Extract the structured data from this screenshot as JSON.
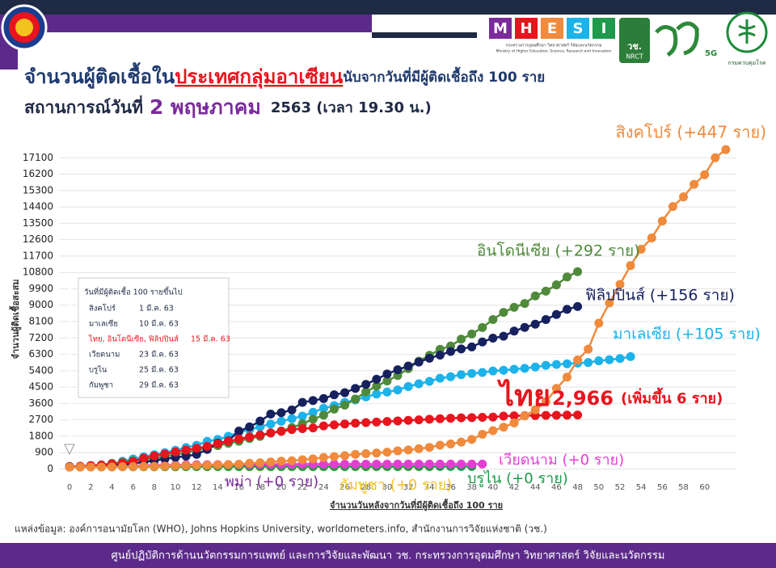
{
  "header": {
    "mhesi_letters": [
      "M",
      "H",
      "E",
      "S",
      "I"
    ],
    "mhesi_th": "กระทรวงการอุดมศึกษา วิทยาศาสตร์ วิจัยและนวัตกรรม",
    "mhesi_en": "Ministry of Higher Education, Science, Research and Innovation",
    "nrct": "วช.",
    "nrct_en": "NRCT",
    "fiveg": "5G",
    "ddc": "กรมควบคุมโรค"
  },
  "chart_data": {
    "type": "line",
    "title": [
      "จำนวนผู้ติดเชื้อใน",
      "ประเทศกลุ่มอาเซียน",
      "นับจากวันที่มีผู้ติดเชื้อถึง 100 ราย"
    ],
    "subtitle": [
      "สถานการณ์วันที่",
      "2 พฤษภาคม",
      "2563  (เวลา 19.30 น.)"
    ],
    "x_label": "จำนวนวันหลังจากวันที่มีผู้ติดเชื้อถึง 100 ราย",
    "y_label": "จำนวนผู้ติดเชื้อสะสม",
    "x": [
      0,
      1,
      2,
      3,
      4,
      5,
      6,
      7,
      8,
      9,
      10,
      11,
      12,
      13,
      14,
      15,
      16,
      17,
      18,
      19,
      20,
      21,
      22,
      23,
      24,
      25,
      26,
      27,
      28,
      29,
      30,
      31,
      32,
      33,
      34,
      35,
      36,
      37,
      38,
      39,
      40,
      41,
      42,
      43,
      44,
      45,
      46,
      47,
      48,
      49,
      50,
      51,
      52,
      53,
      54,
      55,
      56,
      57,
      58,
      59,
      60,
      61,
      62
    ],
    "xlim": [
      -1,
      63
    ],
    "xticks": [
      0,
      2,
      4,
      6,
      8,
      10,
      12,
      14,
      16,
      18,
      20,
      22,
      24,
      26,
      28,
      30,
      32,
      34,
      36,
      38,
      40,
      42,
      44,
      46,
      48,
      50,
      52,
      54,
      56,
      58,
      60
    ],
    "ylim": [
      -600,
      18000
    ],
    "yticks": [
      0,
      900,
      1800,
      2700,
      3600,
      4500,
      5400,
      6300,
      7200,
      8100,
      9000,
      9900,
      10800,
      11700,
      12600,
      13500,
      14400,
      15300,
      16200,
      17100
    ],
    "grid": true,
    "series": [
      {
        "name": "สิงคโปร์ (+447 ราย)",
        "color": "#f08a3c",
        "values": [
          106,
          108,
          110,
          110,
          117,
          130,
          138,
          150,
          150,
          160,
          178,
          187,
          200,
          212,
          226,
          243,
          266,
          313,
          345,
          385,
          432,
          455,
          509,
          558,
          631,
          683,
          732,
          802,
          844,
          879,
          926,
          1000,
          1049,
          1114,
          1189,
          1309,
          1375,
          1481,
          1623,
          1910,
          2108,
          2299,
          2532,
          2918,
          3252,
          3699,
          4427,
          5050,
          5992,
          6588,
          8014,
          9125,
          10141,
          11178,
          12075,
          12693,
          13624,
          14423,
          14951,
          15641,
          16169,
          17101,
          17548
        ]
      },
      {
        "name": "อินโดนีเซีย (+292 ราย)",
        "color": "#4f8a3b",
        "values": [
          117,
          134,
          172,
          227,
          309,
          369,
          450,
          514,
          579,
          686,
          790,
          893,
          1046,
          1155,
          1285,
          1414,
          1528,
          1677,
          1790,
          1986,
          2092,
          2273,
          2491,
          2738,
          2956,
          3293,
          3512,
          3842,
          4241,
          4557,
          4839,
          5136,
          5516,
          5923,
          6248,
          6575,
          6760,
          7135,
          7418,
          7775,
          8211,
          8607,
          8882,
          9096,
          9511,
          9771,
          10118,
          10551,
          10843,
          null,
          null,
          null,
          null,
          null,
          null,
          null,
          null,
          null,
          null,
          null,
          null,
          null,
          null
        ]
      },
      {
        "name": "ฟิลิปปินส์ (+156 ราย)",
        "color": "#16215e",
        "values": [
          140,
          142,
          187,
          202,
          217,
          230,
          307,
          380,
          462,
          552,
          636,
          707,
          803,
          1075,
          1418,
          1546,
          2084,
          2311,
          2633,
          3018,
          3094,
          3246,
          3660,
          3764,
          3870,
          4076,
          4195,
          4428,
          4648,
          4932,
          5223,
          5453,
          5660,
          5878,
          6087,
          6259,
          6459,
          6599,
          6710,
          6981,
          7192,
          7294,
          7579,
          7777,
          7958,
          8212,
          8488,
          8772,
          8928,
          null,
          null,
          null,
          null,
          null,
          null,
          null,
          null,
          null,
          null,
          null,
          null,
          null,
          null
        ]
      },
      {
        "name": "มาเลเซีย (+105 ราย)",
        "color": "#1cb2ea",
        "values": [
          129,
          149,
          149,
          197,
          238,
          428,
          553,
          673,
          790,
          900,
          1030,
          1183,
          1306,
          1518,
          1624,
          1796,
          2031,
          2161,
          2320,
          2470,
          2626,
          2766,
          2908,
          3116,
          3333,
          3483,
          3662,
          3793,
          3963,
          4119,
          4228,
          4346,
          4530,
          4683,
          4817,
          4987,
          5072,
          5182,
          5251,
          5305,
          5389,
          5425,
          5482,
          5532,
          5603,
          5691,
          5742,
          5780,
          5820,
          5851,
          5945,
          6002,
          6071,
          6176,
          null,
          null,
          null,
          null,
          null,
          null,
          null,
          null,
          null
        ]
      },
      {
        "name": "ไทย",
        "color": "#e8141e",
        "annotation": "(เพิ่มขึ้น 6 ราย)",
        "values": [
          114,
          147,
          177,
          212,
          272,
          322,
          411,
          599,
          721,
          827,
          934,
          1045,
          1136,
          1245,
          1388,
          1524,
          1651,
          1771,
          1875,
          1978,
          2067,
          2169,
          2220,
          2258,
          2369,
          2423,
          2473,
          2518,
          2551,
          2579,
          2613,
          2643,
          2672,
          2700,
          2733,
          2765,
          2792,
          2811,
          2826,
          2839,
          2854,
          2907,
          2922,
          2931,
          2938,
          2947,
          2954,
          2960,
          2966,
          null,
          null,
          null,
          null,
          null,
          null,
          null,
          null,
          null,
          null,
          null,
          null,
          null,
          null
        ],
        "value_labels": [
          null,
          null,
          null,
          null,
          null,
          null,
          null,
          null,
          null,
          null,
          null,
          null,
          null,
          null,
          null,
          null,
          null,
          null,
          null,
          null,
          null,
          null,
          null,
          null,
          null,
          null,
          null,
          null,
          null,
          null,
          null,
          null,
          null,
          null,
          null,
          null,
          null,
          null,
          null,
          null,
          null,
          null,
          null,
          null,
          null,
          null,
          null,
          null,
          "2,966",
          null,
          null,
          null,
          null,
          null,
          null,
          null,
          null,
          null,
          null,
          null,
          null,
          null,
          null
        ]
      },
      {
        "name": "เวียดนาม (+0 ราย)",
        "color": "#e23fd2",
        "values": [
          113,
          134,
          141,
          148,
          153,
          163,
          174,
          188,
          203,
          212,
          218,
          233,
          237,
          240,
          241,
          245,
          249,
          251,
          255,
          257,
          258,
          262,
          265,
          266,
          267,
          268,
          268,
          268,
          268,
          268,
          268,
          270,
          270,
          270,
          270,
          270,
          270,
          270,
          271,
          271,
          null,
          null,
          null,
          null,
          null,
          null,
          null,
          null,
          null,
          null,
          null,
          null,
          null,
          null,
          null,
          null,
          null,
          null,
          null,
          null,
          null,
          null,
          null
        ]
      },
      {
        "name": "กัมพูชา (+0 ราย)",
        "color": "#f2c21f",
        "values": [
          103,
          107,
          109,
          109,
          110,
          114,
          114,
          115,
          117,
          119,
          119,
          120,
          122,
          122,
          122,
          122,
          122,
          122,
          122,
          122,
          122,
          122,
          122,
          122,
          122,
          122,
          122,
          122,
          122,
          122,
          122,
          122,
          122,
          122,
          122,
          null,
          null,
          null,
          null,
          null,
          null,
          null,
          null,
          null,
          null,
          null,
          null,
          null,
          null,
          null,
          null,
          null,
          null,
          null,
          null,
          null,
          null,
          null,
          null,
          null,
          null,
          null,
          null
        ]
      },
      {
        "name": "บรูไน (+0 ราย)",
        "color": "#1d9a4b",
        "values": [
          104,
          114,
          115,
          120,
          126,
          127,
          129,
          131,
          133,
          134,
          135,
          135,
          135,
          136,
          136,
          136,
          136,
          136,
          136,
          137,
          137,
          138,
          138,
          138,
          138,
          138,
          138,
          138,
          138,
          138,
          138,
          138,
          138,
          138,
          138,
          138,
          138,
          138,
          138,
          null,
          null,
          null,
          null,
          null,
          null,
          null,
          null,
          null,
          null,
          null,
          null,
          null,
          null,
          null,
          null,
          null,
          null,
          null,
          null,
          null,
          null,
          null,
          null
        ]
      },
      {
        "name": "พม่า (+0 ราย)",
        "color": "#7b2b9c",
        "values": [
          111,
          119,
          121,
          127,
          132,
          139,
          141,
          144,
          144,
          144,
          144,
          144,
          146,
          146,
          146,
          150,
          151,
          151,
          151,
          151,
          151,
          null,
          null,
          null,
          null,
          null,
          null,
          null,
          null,
          null,
          null,
          null,
          null,
          null,
          null,
          null,
          null,
          null,
          null,
          null,
          null,
          null,
          null,
          null,
          null,
          null,
          null,
          null,
          null,
          null,
          null,
          null,
          null,
          null,
          null,
          null,
          null,
          null,
          null,
          null,
          null,
          null,
          null
        ]
      }
    ]
  },
  "inset": {
    "title": "วันที่มีผู้ติดเชื้อ 100 รายขึ้นไป",
    "rows": [
      [
        "สิงคโปร์",
        "1 มี.ค. 63"
      ],
      [
        "มาเลเซีย",
        "10 มี.ค. 63"
      ],
      [
        "ไทย, อินโดนีเซีย, ฟิลิปปินส์",
        "15 มี.ค. 63"
      ],
      [
        "เวียดนาม",
        "23 มี.ค. 63"
      ],
      [
        "บรูไน",
        "25 มี.ค. 63"
      ],
      [
        "กัมพูชา",
        "29 มี.ค. 63"
      ]
    ]
  },
  "source": "แหล่งข้อมูล: องค์การอนามัยโลก (WHO), Johns Hopkins University, worldometers.info, สำนักงานการวิจัยแห่งชาติ (วช.)",
  "footer": "ศูนย์ปฏิบัติการด้านนวัตกรรมการแพทย์ และการวิจัยและพัฒนา วช.   กระทรวงการอุดมศึกษา วิทยาศาสตร์ วิจัยและนวัตกรรม"
}
